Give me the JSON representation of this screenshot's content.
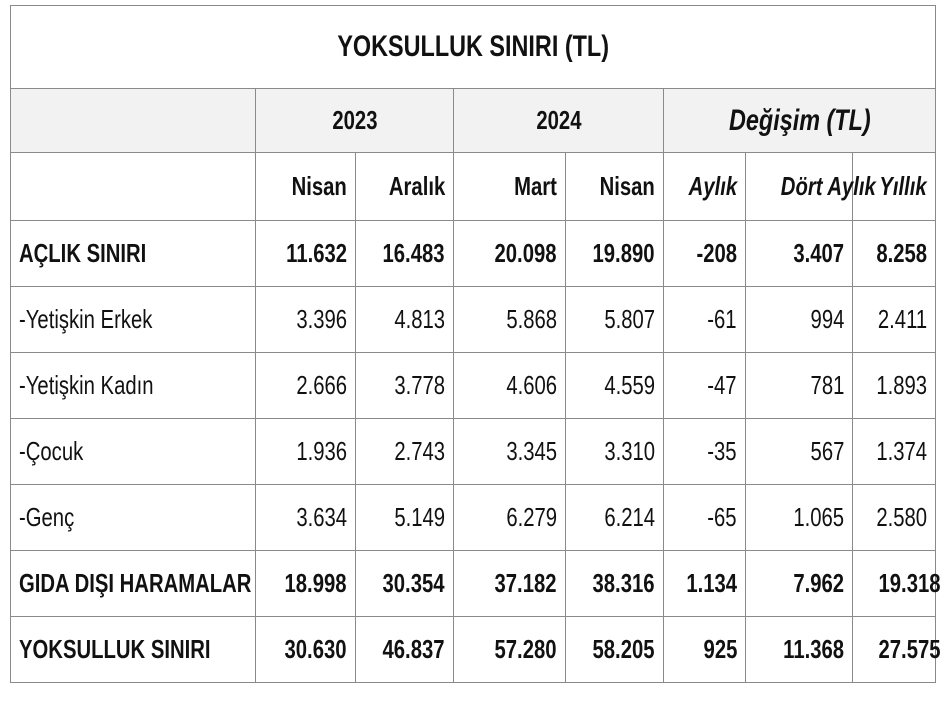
{
  "title": "YOKSULLUK SINIRI (TL)",
  "groups": [
    "2023",
    "2024",
    "Değişim (TL)"
  ],
  "columns": [
    "Nisan",
    "Aralık",
    "Mart",
    "Nisan",
    "Aylık",
    "Dört Aylık",
    "Yıllık"
  ],
  "rows": [
    {
      "label": "AÇLIK SINIRI",
      "cells": [
        "11.632",
        "16.483",
        "20.098",
        "19.890",
        "-208",
        "3.407",
        "8.258"
      ]
    },
    {
      "label": "-Yetişkin Erkek",
      "cells": [
        "3.396",
        "4.813",
        "5.868",
        "5.807",
        "-61",
        "994",
        "2.411"
      ]
    },
    {
      "label": "-Yetişkin Kadın",
      "cells": [
        "2.666",
        "3.778",
        "4.606",
        "4.559",
        "-47",
        "781",
        "1.893"
      ]
    },
    {
      "label": "-Çocuk",
      "cells": [
        "1.936",
        "2.743",
        "3.345",
        "3.310",
        "-35",
        "567",
        "1.374"
      ]
    },
    {
      "label": "-Genç",
      "cells": [
        "3.634",
        "5.149",
        "6.279",
        "6.214",
        "-65",
        "1.065",
        "2.580"
      ]
    },
    {
      "label": "GIDA DIŞI HARAMALAR",
      "cells": [
        "18.998",
        "30.354",
        "37.182",
        "38.316",
        "1.134",
        "7.962",
        "19.318"
      ]
    },
    {
      "label": "YOKSULLUK SINIRI",
      "cells": [
        "30.630",
        "46.837",
        "57.280",
        "58.205",
        "925",
        "11.368",
        "27.575"
      ]
    }
  ]
}
